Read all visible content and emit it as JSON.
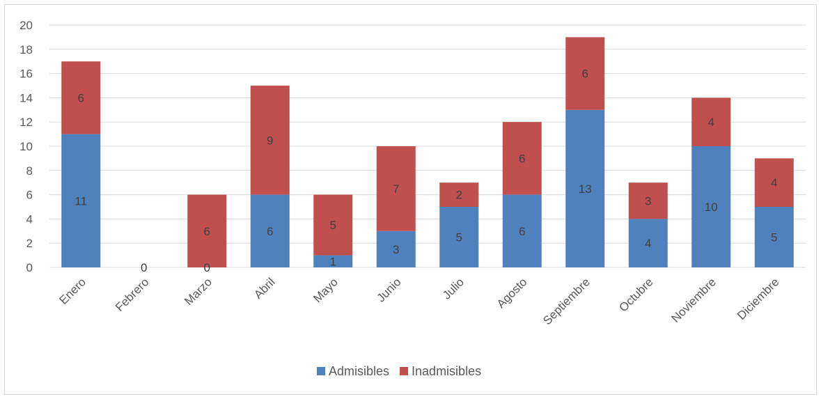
{
  "chart_data": {
    "type": "bar",
    "stacked": true,
    "categories": [
      "Enero",
      "Febrero",
      "Marzo",
      "Abril",
      "Mayo",
      "Junio",
      "Julio",
      "Agosto",
      "Septiembre",
      "Octubre",
      "Noviembre",
      "Diciembre"
    ],
    "series": [
      {
        "name": "Admisibles",
        "color": "#4f81bd",
        "values": [
          11,
          0,
          0,
          6,
          1,
          3,
          5,
          6,
          13,
          4,
          10,
          5
        ]
      },
      {
        "name": "Inadmisibles",
        "color": "#c0504d",
        "values": [
          6,
          null,
          6,
          9,
          5,
          7,
          2,
          6,
          6,
          3,
          4,
          4
        ]
      }
    ],
    "ylim": [
      0,
      20
    ],
    "yticks": [
      0,
      2,
      4,
      6,
      8,
      10,
      12,
      14,
      16,
      18,
      20
    ],
    "grid": true,
    "legend_position": "bottom"
  }
}
